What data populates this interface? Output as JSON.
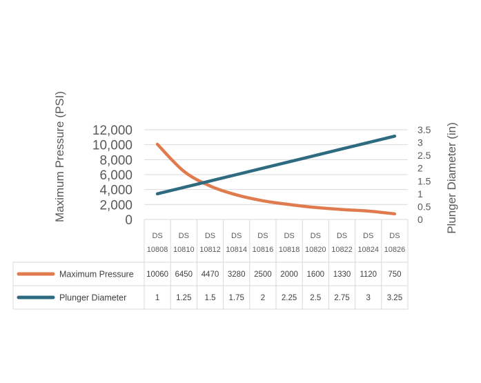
{
  "chart_data": {
    "type": "line",
    "categories": [
      [
        "DS",
        "10808"
      ],
      [
        "DS",
        "10810"
      ],
      [
        "DS",
        "10812"
      ],
      [
        "DS",
        "10814"
      ],
      [
        "DS",
        "10816"
      ],
      [
        "DS",
        "10818"
      ],
      [
        "DS",
        "10820"
      ],
      [
        "DS",
        "10822"
      ],
      [
        "DS",
        "10824"
      ],
      [
        "DS",
        "10826"
      ]
    ],
    "ylabel_left": "Maximum Pressure (PSI)",
    "ylabel_right": "Plunger Diameter (in)",
    "yticks_left": [
      "12,000",
      "10,000",
      "8,000",
      "6,000",
      "4,000",
      "2,000",
      "0"
    ],
    "yticks_right": [
      "3.5",
      "3",
      "2.5",
      "2",
      "1.5",
      "1",
      "0.5",
      "0"
    ],
    "ylim_left": [
      0,
      12000
    ],
    "ylim_right": [
      0,
      3.5
    ],
    "grid": true,
    "legend": "data-table",
    "series": [
      {
        "name": "Maximum Pressure",
        "axis": "left",
        "color": "#e07b4f",
        "values": [
          10060,
          6450,
          4470,
          3280,
          2500,
          2000,
          1600,
          1330,
          1120,
          750
        ],
        "labels": [
          "10060",
          "6450",
          "4470",
          "3280",
          "2500",
          "2000",
          "1600",
          "1330",
          "1120",
          "750"
        ]
      },
      {
        "name": "Plunger Diameter",
        "axis": "right",
        "color": "#2e6b80",
        "values": [
          1,
          1.25,
          1.5,
          1.75,
          2,
          2.25,
          2.5,
          2.75,
          3,
          3.25
        ],
        "labels": [
          "1",
          "1.25",
          "1.5",
          "1.75",
          "2",
          "2.25",
          "2.5",
          "2.75",
          "3",
          "3.25"
        ]
      }
    ]
  }
}
